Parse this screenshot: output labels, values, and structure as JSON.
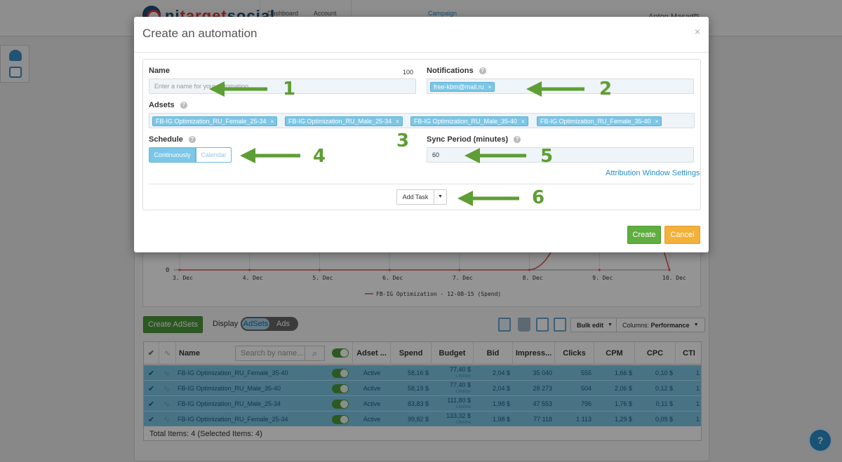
{
  "app": {
    "logo_text_a": "ni",
    "logo_text_b": "target",
    "logo_text_c": "social",
    "nav": [
      {
        "label": "Dashboard"
      },
      {
        "label": "Account"
      },
      {
        "label": "Campaign"
      }
    ],
    "user": "Anton Masaph"
  },
  "chart": {
    "y_tick": "0",
    "x_ticks": [
      "3. Dec",
      "4. Dec",
      "5. Dec",
      "6. Dec",
      "7. Dec",
      "8. Dec",
      "9. Dec",
      "10. Dec"
    ],
    "legend": "FB-IG Optimization - 12-08-15 (Spend)",
    "series_color": "#d9534f"
  },
  "toolbar": {
    "create_adsets": "Create AdSets",
    "display_label": "Display",
    "display_options": [
      "AdSets",
      "Ads"
    ],
    "bulk_edit": "Bulk edit",
    "columns_label": "Columns:",
    "columns_value": "Performance"
  },
  "table": {
    "headers": {
      "name": "Name",
      "search_placeholder": "Search by name...",
      "adset_status": "Adset ...",
      "spend": "Spend",
      "budget": "Budget",
      "bid": "Bid",
      "impressions": "Impress...",
      "clicks": "Clicks",
      "cpm": "CPM",
      "cpc": "CPC",
      "ctr": "CTI"
    },
    "rows": [
      {
        "name": "FB-IG Optimization_RU_Female_35-40",
        "status": "Active",
        "spend": "58,16 $",
        "budget": "77,40 $",
        "budget_sub": "Lifetime",
        "bid": "2,04 $",
        "impressions": "35 040",
        "clicks": "555",
        "cpm": "1,66 $",
        "cpc": "0,10 $",
        "ctr": "1"
      },
      {
        "name": "FB-IG Optimization_RU_Male_35-40",
        "status": "Active",
        "spend": "58,19 $",
        "budget": "77,40 $",
        "budget_sub": "Lifetime",
        "bid": "2,04 $",
        "impressions": "28 273",
        "clicks": "504",
        "cpm": "2,06 $",
        "cpc": "0,12 $",
        "ctr": "1"
      },
      {
        "name": "FB-IG Optimization_RU_Male_25-34",
        "status": "Active",
        "spend": "83,83 $",
        "budget": "111,80 $",
        "budget_sub": "Lifetime",
        "bid": "1,98 $",
        "impressions": "47 553",
        "clicks": "796",
        "cpm": "1,76 $",
        "cpc": "0,11 $",
        "ctr": "1"
      },
      {
        "name": "FB-IG Optimization_RU_Female_25-34",
        "status": "Active",
        "spend": "99,82 $",
        "budget": "133,32 $",
        "budget_sub": "Lifetime",
        "bid": "1,98 $",
        "impressions": "77 118",
        "clicks": "1 113",
        "cpm": "1,29 $",
        "cpc": "0,09 $",
        "ctr": "1"
      }
    ],
    "footer": "Total Items: 4    (Selected Items: 4)"
  },
  "modal": {
    "title": "Create an automation",
    "close": "×",
    "name_label": "Name",
    "name_counter": "100",
    "name_placeholder": "Enter a name for your automation",
    "notifications_label": "Notifications",
    "notification_tags": [
      "free-kbm@mail.ru"
    ],
    "adsets_label": "Adsets",
    "adset_tags": [
      "FB-IG Optimization_RU_Female_25-34",
      "FB-IG Optimization_RU_Male_25-34",
      "FB-IG Optimization_RU_Male_35-40",
      "FB-IG Optimization_RU_Female_35-40"
    ],
    "schedule_label": "Schedule",
    "schedule_options": [
      "Continuously",
      "Calendar"
    ],
    "sync_label": "Sync Period (minutes)",
    "sync_value": "60",
    "attribution_link": "Attribution Window Settings",
    "add_task": "Add Task",
    "create": "Create",
    "cancel": "Cancel",
    "help_glyph": "?"
  },
  "annotations": {
    "color": "#5e9e34",
    "numbers": [
      "1",
      "2",
      "3",
      "4",
      "5",
      "6"
    ]
  },
  "help_fab": "?"
}
